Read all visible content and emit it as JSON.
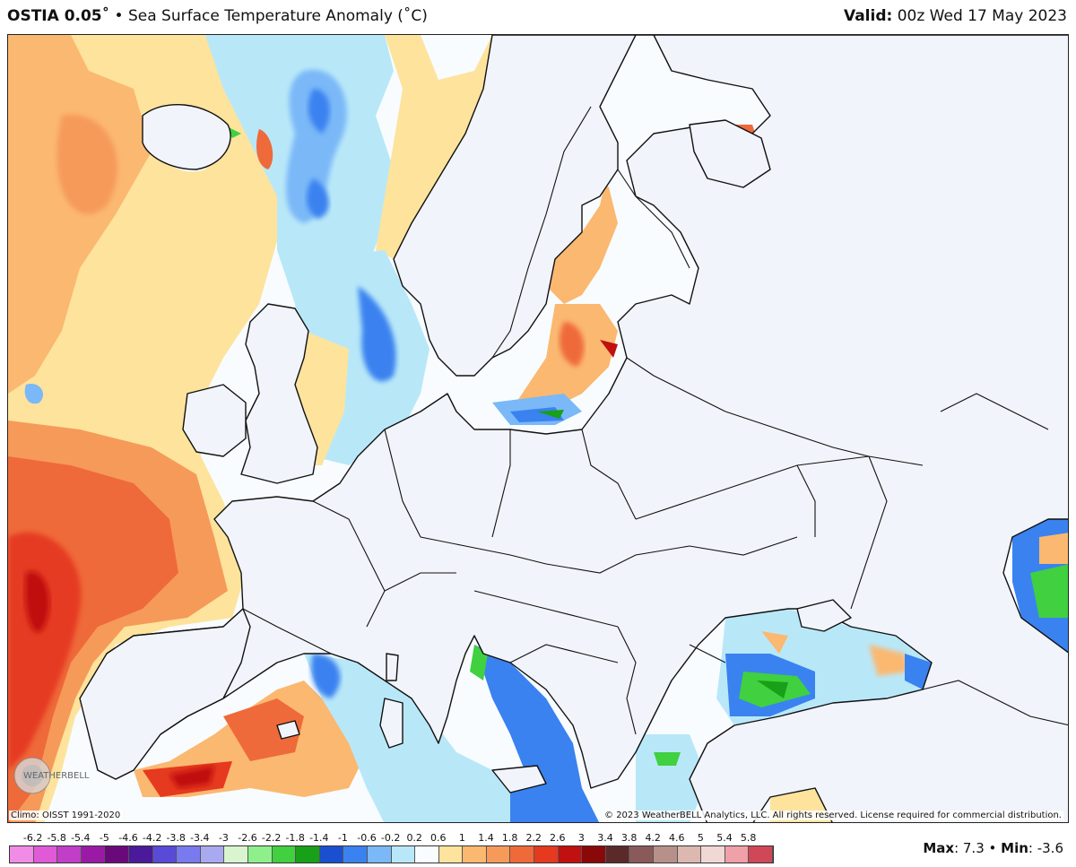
{
  "header": {
    "product": "OSTIA 0.05˚",
    "separator": "•",
    "description": "Sea Surface Temperature Anomaly (˚C)",
    "valid_label": "Valid:",
    "valid_time": "00z Wed 17 May 2023"
  },
  "footer": {
    "climo": "Climo: OISST 1991-2020",
    "copyright": "© 2023 WeatherBELL Analytics, LLC. All rights reserved. License required for commercial distribution.",
    "max_label": "Max",
    "max_value": "7.3",
    "min_label": "Min",
    "min_value": "-3.6",
    "logo_text": "WEATHERBELL"
  },
  "legend": {
    "labels": [
      "-6.2",
      "-5.8",
      "-5.4",
      "-5",
      "-4.6",
      "-4.2",
      "-3.8",
      "-3.4",
      "-3",
      "-2.6",
      "-2.2",
      "-1.8",
      "-1.4",
      "-1",
      "-0.6",
      "-0.2",
      "0.2",
      "0.6",
      "1",
      "1.4",
      "1.8",
      "2.2",
      "2.6",
      "3",
      "3.4",
      "3.8",
      "4.2",
      "4.6",
      "5",
      "5.4",
      "5.8"
    ],
    "colors": [
      "#f08ce6",
      "#e05ad8",
      "#c13ec8",
      "#9a1aa6",
      "#6a0a7a",
      "#4a1a9a",
      "#5a4ad8",
      "#7a7af0",
      "#a9a9f0",
      "#d8f5d0",
      "#8ef08a",
      "#40d040",
      "#18a018",
      "#1a50d0",
      "#3a82f0",
      "#7ab8f8",
      "#b8e8f8",
      "#f8fcff",
      "#fde39c",
      "#fbb870",
      "#f69a5a",
      "#ef6a3a",
      "#e53a20",
      "#c01010",
      "#8a0808",
      "#5a2a2a",
      "#8a5a5a",
      "#b8908a",
      "#dcb8b0",
      "#f0d8d4",
      "#f0a0a8",
      "#d04858"
    ]
  },
  "map": {
    "land_color": "#f2f4fb",
    "border_color": "#111111"
  }
}
